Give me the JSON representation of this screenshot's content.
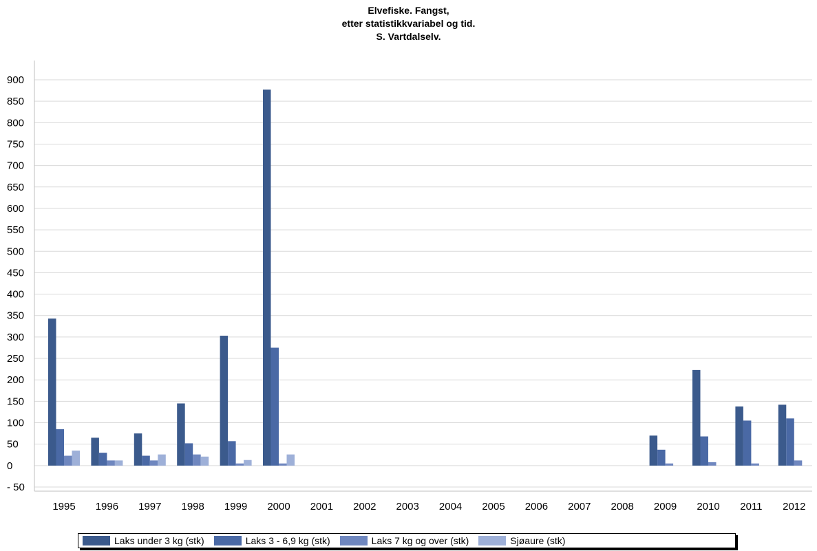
{
  "chart_data": {
    "type": "bar",
    "title": [
      "Elvefiske. Fangst,",
      "etter statistikkvariabel og tid.",
      "S. Vartdalselv."
    ],
    "xlabel": "",
    "ylabel": "",
    "ylim": [
      -50,
      900
    ],
    "y_ticks": [
      900,
      850,
      800,
      750,
      700,
      650,
      600,
      550,
      500,
      450,
      400,
      350,
      300,
      250,
      200,
      150,
      100,
      50,
      0,
      -50
    ],
    "y_tick_labels": [
      "900",
      "850",
      "800",
      "750",
      "700",
      "650",
      "600",
      "550",
      "500",
      "450",
      "400",
      "350",
      "300",
      "250",
      "200",
      "150",
      "100",
      "50",
      "0",
      "- 50"
    ],
    "grid": true,
    "legend_position": "bottom",
    "categories": [
      "1995",
      "1996",
      "1997",
      "1998",
      "1999",
      "2000",
      "2001",
      "2002",
      "2003",
      "2004",
      "2005",
      "2006",
      "2007",
      "2008",
      "2009",
      "2010",
      "2011",
      "2012"
    ],
    "series": [
      {
        "name": "Laks under 3 kg (stk)",
        "color": "#3b5a8c",
        "values": [
          343,
          65,
          75,
          145,
          303,
          877,
          0,
          0,
          0,
          0,
          0,
          0,
          0,
          0,
          70,
          223,
          138,
          142
        ]
      },
      {
        "name": "Laks 3 - 6,9 kg (stk)",
        "color": "#4a69a5",
        "values": [
          85,
          30,
          23,
          52,
          57,
          275,
          0,
          0,
          0,
          0,
          0,
          0,
          0,
          0,
          37,
          68,
          105,
          110
        ]
      },
      {
        "name": "Laks 7 kg og over (stk)",
        "color": "#6f87bf",
        "values": [
          23,
          12,
          12,
          26,
          5,
          5,
          0,
          0,
          0,
          0,
          0,
          0,
          0,
          0,
          5,
          8,
          5,
          12
        ]
      },
      {
        "name": "Sjøaure (stk)",
        "color": "#9eb0d8",
        "values": [
          35,
          12,
          26,
          21,
          13,
          26,
          0,
          0,
          0,
          0,
          0,
          0,
          0,
          0,
          0,
          0,
          0,
          0
        ]
      }
    ]
  }
}
